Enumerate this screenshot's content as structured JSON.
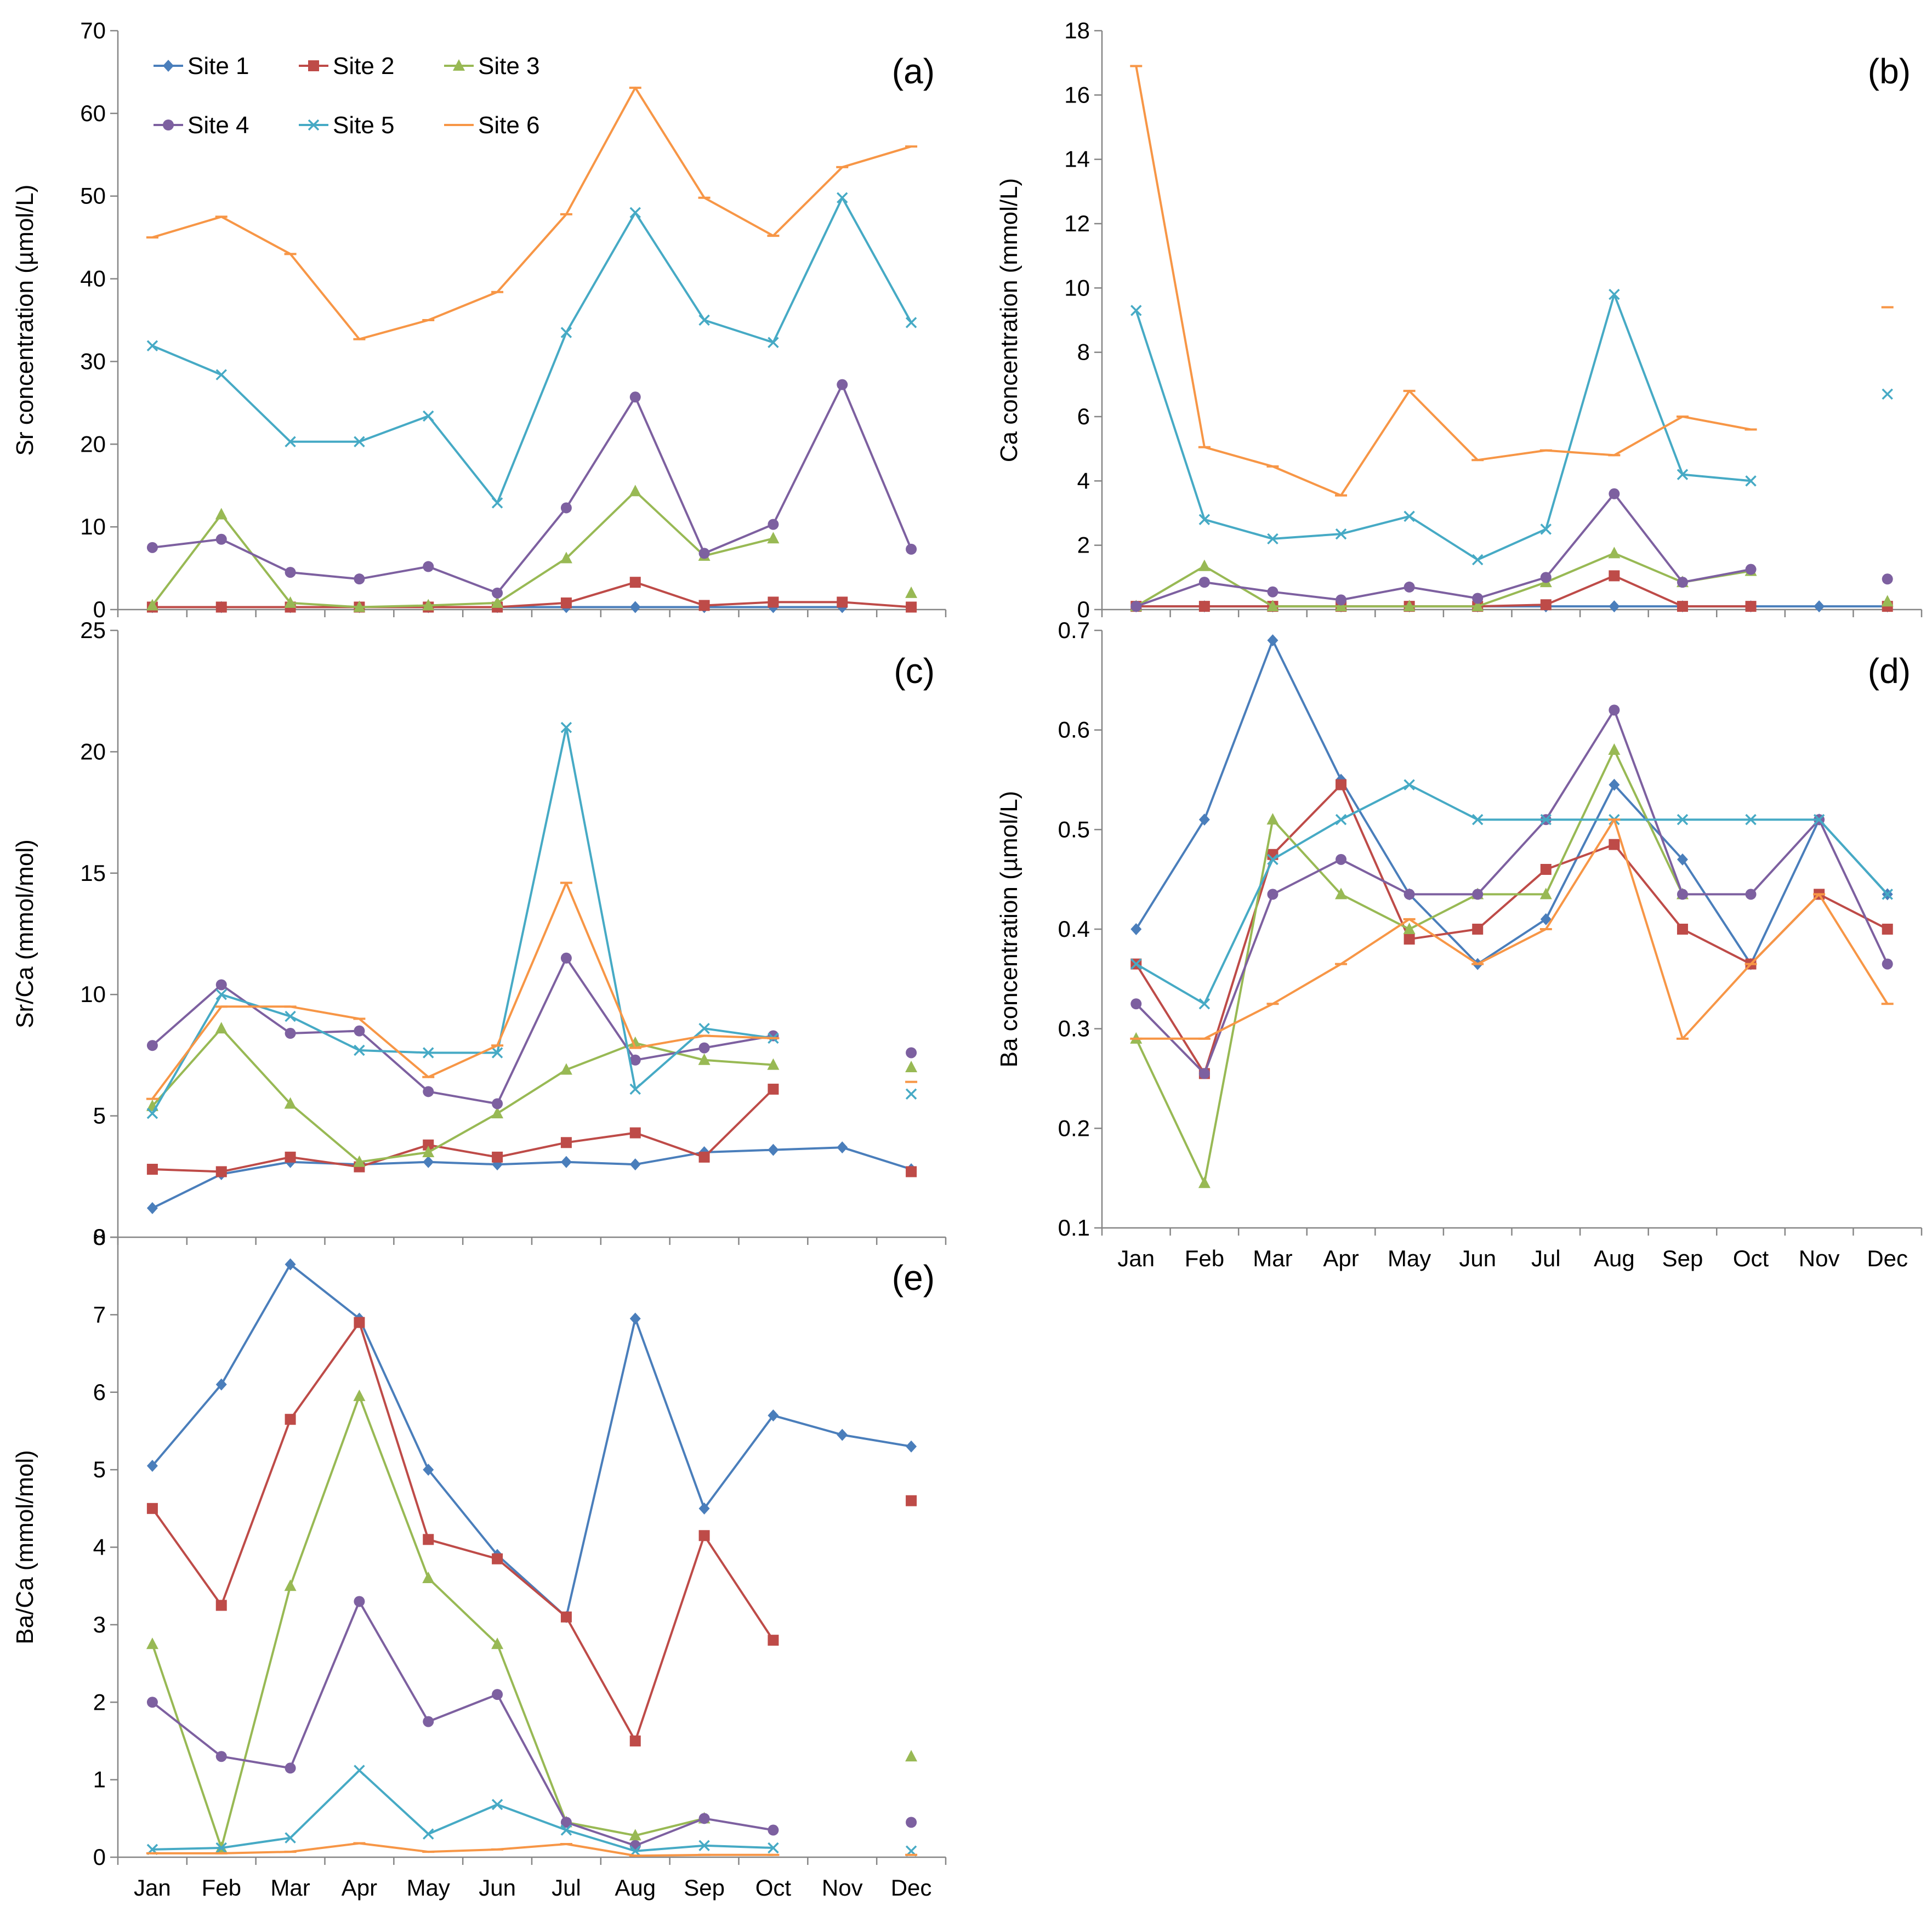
{
  "figure": {
    "months": [
      "Jan",
      "Feb",
      "Mar",
      "Apr",
      "May",
      "Jun",
      "Jul",
      "Aug",
      "Sep",
      "Oct",
      "Nov",
      "Dec"
    ],
    "colors": {
      "Site 1": "#4a7ebb",
      "Site 2": "#be4b48",
      "Site 3": "#98b954",
      "Site 4": "#7d60a0",
      "Site 5": "#46aac5",
      "Site 6": "#f79646"
    },
    "markers": {
      "Site 1": "diamond",
      "Site 2": "square",
      "Site 3": "triangle",
      "Site 4": "circle",
      "Site 5": "x",
      "Site 6": "dash"
    }
  },
  "chart_data": [
    {
      "id": "a",
      "type": "line",
      "panel_label": "(a)",
      "ylabel": "Sr concentration (µmol/L)",
      "ylim": [
        0,
        70
      ],
      "ytick_step": 10,
      "show_month_labels": false,
      "legend": true,
      "series": [
        {
          "name": "Site 1",
          "values": [
            0.3,
            0.3,
            0.3,
            0.3,
            0.3,
            0.3,
            0.3,
            0.3,
            0.3,
            0.3,
            0.3,
            null
          ]
        },
        {
          "name": "Site 2",
          "values": [
            0.3,
            0.3,
            0.3,
            0.3,
            0.3,
            0.3,
            0.8,
            3.3,
            0.5,
            0.9,
            0.9,
            0.3
          ]
        },
        {
          "name": "Site 3",
          "values": [
            0.5,
            11.5,
            0.8,
            0.3,
            0.5,
            0.8,
            6.2,
            14.3,
            6.5,
            8.6,
            null,
            2.0
          ]
        },
        {
          "name": "Site 4",
          "values": [
            7.5,
            8.5,
            4.5,
            3.7,
            5.2,
            2.0,
            12.3,
            25.7,
            6.8,
            10.3,
            27.2,
            7.3
          ]
        },
        {
          "name": "Site 5",
          "values": [
            31.9,
            28.4,
            20.3,
            20.3,
            23.4,
            12.9,
            33.5,
            48.0,
            35.0,
            32.3,
            49.8,
            34.7
          ]
        },
        {
          "name": "Site 6",
          "values": [
            45.0,
            47.5,
            43.0,
            32.7,
            35.0,
            38.4,
            47.8,
            63.1,
            49.8,
            45.2,
            53.5,
            56.0
          ]
        }
      ]
    },
    {
      "id": "b",
      "type": "line",
      "panel_label": "(b)",
      "ylabel": "Ca concentration (mmol/L)",
      "ylim": [
        0,
        18
      ],
      "ytick_step": 2,
      "show_month_labels": false,
      "legend": false,
      "series": [
        {
          "name": "Site 1",
          "values": [
            0.1,
            0.1,
            0.1,
            0.1,
            0.1,
            0.1,
            0.1,
            0.1,
            0.1,
            0.1,
            0.1,
            0.1
          ]
        },
        {
          "name": "Site 2",
          "values": [
            0.1,
            0.1,
            0.1,
            0.1,
            0.1,
            0.1,
            0.15,
            1.05,
            0.1,
            0.1,
            null,
            0.1
          ]
        },
        {
          "name": "Site 3",
          "values": [
            0.1,
            1.35,
            0.1,
            0.1,
            0.1,
            0.1,
            0.85,
            1.75,
            0.85,
            1.2,
            null,
            0.25
          ]
        },
        {
          "name": "Site 4",
          "values": [
            0.1,
            0.85,
            0.55,
            0.3,
            0.7,
            0.35,
            1.0,
            3.6,
            0.85,
            1.25,
            null,
            0.95
          ]
        },
        {
          "name": "Site 5",
          "values": [
            9.3,
            2.8,
            2.2,
            2.35,
            2.9,
            1.55,
            2.5,
            9.8,
            4.2,
            4.0,
            null,
            6.7
          ]
        },
        {
          "name": "Site 6",
          "values": [
            16.9,
            5.05,
            4.45,
            3.55,
            6.8,
            4.65,
            4.95,
            4.8,
            6.0,
            5.6,
            null,
            9.4
          ]
        }
      ]
    },
    {
      "id": "c",
      "type": "line",
      "panel_label": "(c)",
      "ylabel": "Sr/Ca (mmol/mol)",
      "ylim": [
        0,
        25
      ],
      "ytick_step": 5,
      "show_month_labels": false,
      "legend": false,
      "series": [
        {
          "name": "Site 1",
          "values": [
            1.2,
            2.6,
            3.1,
            3.0,
            3.1,
            3.0,
            3.1,
            3.0,
            3.5,
            3.6,
            3.7,
            2.8
          ]
        },
        {
          "name": "Site 2",
          "values": [
            2.8,
            2.7,
            3.3,
            2.9,
            3.8,
            3.3,
            3.9,
            4.3,
            3.3,
            6.1,
            null,
            2.7
          ]
        },
        {
          "name": "Site 3",
          "values": [
            5.4,
            8.6,
            5.5,
            3.1,
            3.5,
            5.1,
            6.9,
            8.0,
            7.3,
            7.1,
            null,
            7.0
          ]
        },
        {
          "name": "Site 4",
          "values": [
            7.9,
            10.4,
            8.4,
            8.5,
            6.0,
            5.5,
            11.5,
            7.3,
            7.8,
            8.3,
            null,
            7.6
          ]
        },
        {
          "name": "Site 5",
          "values": [
            5.1,
            10.0,
            9.1,
            7.7,
            7.6,
            7.6,
            21.0,
            6.1,
            8.6,
            8.2,
            null,
            5.9
          ]
        },
        {
          "name": "Site 6",
          "values": [
            5.7,
            9.5,
            9.5,
            9.0,
            6.6,
            7.9,
            14.6,
            7.8,
            8.3,
            8.2,
            null,
            6.4
          ]
        }
      ]
    },
    {
      "id": "d",
      "type": "line",
      "panel_label": "(d)",
      "ylabel": "Ba concentration (µmol/L)",
      "ylim": [
        0.1,
        0.7
      ],
      "ytick_step": 0.1,
      "show_month_labels": true,
      "legend": false,
      "series": [
        {
          "name": "Site 1",
          "values": [
            0.4,
            0.51,
            0.69,
            0.55,
            0.435,
            0.365,
            0.41,
            0.545,
            0.47,
            0.365,
            0.51,
            0.435
          ]
        },
        {
          "name": "Site 2",
          "values": [
            0.365,
            0.255,
            0.475,
            0.545,
            0.39,
            0.4,
            0.46,
            0.485,
            0.4,
            0.365,
            0.435,
            0.4
          ]
        },
        {
          "name": "Site 3",
          "values": [
            0.29,
            0.145,
            0.51,
            0.435,
            0.4,
            0.435,
            0.435,
            0.58,
            0.435,
            null,
            null,
            null
          ]
        },
        {
          "name": "Site 4",
          "values": [
            0.325,
            0.255,
            0.435,
            0.47,
            0.435,
            0.435,
            0.51,
            0.62,
            0.435,
            0.435,
            0.51,
            0.365
          ]
        },
        {
          "name": "Site 5",
          "values": [
            0.365,
            0.325,
            0.47,
            0.51,
            0.545,
            0.51,
            0.51,
            0.51,
            0.51,
            0.51,
            0.51,
            0.435
          ]
        },
        {
          "name": "Site 6",
          "values": [
            0.29,
            0.29,
            0.325,
            0.365,
            0.41,
            0.365,
            0.4,
            0.51,
            0.29,
            0.365,
            0.435,
            0.325
          ]
        }
      ]
    },
    {
      "id": "e",
      "type": "line",
      "panel_label": "(e)",
      "ylabel": "Ba/Ca (mmol/mol)",
      "ylim": [
        0,
        8
      ],
      "ytick_step": 1,
      "show_month_labels": true,
      "legend": false,
      "series": [
        {
          "name": "Site 1",
          "values": [
            5.05,
            6.1,
            7.65,
            6.95,
            5.0,
            3.9,
            3.1,
            6.95,
            4.5,
            5.7,
            5.45,
            5.3
          ]
        },
        {
          "name": "Site 2",
          "values": [
            4.5,
            3.25,
            5.65,
            6.9,
            4.1,
            3.85,
            3.1,
            1.5,
            4.15,
            2.8,
            null,
            4.6
          ]
        },
        {
          "name": "Site 3",
          "values": [
            2.75,
            0.12,
            3.5,
            5.95,
            3.6,
            2.75,
            0.45,
            0.28,
            0.5,
            null,
            null,
            1.3
          ]
        },
        {
          "name": "Site 4",
          "values": [
            2.0,
            1.3,
            1.15,
            3.3,
            1.75,
            2.1,
            0.45,
            0.15,
            0.5,
            0.35,
            null,
            0.45
          ]
        },
        {
          "name": "Site 5",
          "values": [
            0.1,
            0.12,
            0.25,
            1.12,
            0.3,
            0.68,
            0.35,
            0.08,
            0.15,
            0.12,
            null,
            0.08
          ]
        },
        {
          "name": "Site 6",
          "values": [
            0.05,
            0.05,
            0.07,
            0.18,
            0.07,
            0.1,
            0.17,
            0.02,
            0.03,
            0.03,
            null,
            0.03
          ]
        }
      ]
    }
  ]
}
